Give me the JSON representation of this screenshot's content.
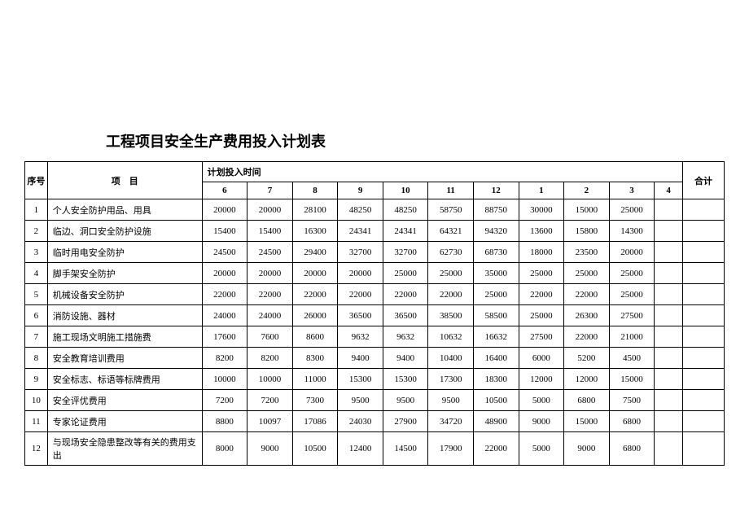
{
  "title": "工程项目安全生产费用投入计划表",
  "headers": {
    "seq": "序号",
    "item": "项　目",
    "period_group": "计划投入时间",
    "total": "合计",
    "months": [
      "6",
      "7",
      "8",
      "9",
      "10",
      "11",
      "12",
      "1",
      "2",
      "3",
      "4"
    ]
  },
  "rows": [
    {
      "seq": "1",
      "item": "个人安全防护用品、用具",
      "vals": [
        "20000",
        "20000",
        "28100",
        "48250",
        "48250",
        "58750",
        "88750",
        "30000",
        "15000",
        "25000",
        ""
      ],
      "total": ""
    },
    {
      "seq": "2",
      "item": "临边、洞口安全防护设施",
      "vals": [
        "15400",
        "15400",
        "16300",
        "24341",
        "24341",
        "64321",
        "94320",
        "13600",
        "15800",
        "14300",
        ""
      ],
      "total": ""
    },
    {
      "seq": "3",
      "item": "临时用电安全防护",
      "vals": [
        "24500",
        "24500",
        "29400",
        "32700",
        "32700",
        "62730",
        "68730",
        "18000",
        "23500",
        "20000",
        ""
      ],
      "total": ""
    },
    {
      "seq": "4",
      "item": "脚手架安全防护",
      "vals": [
        "20000",
        "20000",
        "20000",
        "20000",
        "25000",
        "25000",
        "35000",
        "25000",
        "25000",
        "25000",
        ""
      ],
      "total": ""
    },
    {
      "seq": "5",
      "item": "机械设备安全防护",
      "vals": [
        "22000",
        "22000",
        "22000",
        "22000",
        "22000",
        "22000",
        "25000",
        "22000",
        "22000",
        "25000",
        ""
      ],
      "total": ""
    },
    {
      "seq": "6",
      "item": "消防设施、器材",
      "vals": [
        "24000",
        "24000",
        "26000",
        "36500",
        "36500",
        "38500",
        "58500",
        "25000",
        "26300",
        "27500",
        ""
      ],
      "total": ""
    },
    {
      "seq": "7",
      "item": "施工现场文明施工措施费",
      "vals": [
        "17600",
        "7600",
        "8600",
        "9632",
        "9632",
        "10632",
        "16632",
        "27500",
        "22000",
        "21000",
        ""
      ],
      "total": ""
    },
    {
      "seq": "8",
      "item": "安全教育培训费用",
      "vals": [
        "8200",
        "8200",
        "8300",
        "9400",
        "9400",
        "10400",
        "16400",
        "6000",
        "5200",
        "4500",
        ""
      ],
      "total": ""
    },
    {
      "seq": "9",
      "item": "安全标志、标语等标牌费用",
      "vals": [
        "10000",
        "10000",
        "11000",
        "15300",
        "15300",
        "17300",
        "18300",
        "12000",
        "12000",
        "15000",
        ""
      ],
      "total": ""
    },
    {
      "seq": "10",
      "item": "安全评优费用",
      "vals": [
        "7200",
        "7200",
        "7300",
        "9500",
        "9500",
        "9500",
        "10500",
        "5000",
        "6800",
        "7500",
        ""
      ],
      "total": ""
    },
    {
      "seq": "11",
      "item": "专家论证费用",
      "vals": [
        "8800",
        "10097",
        "17086",
        "24030",
        "27900",
        "34720",
        "48900",
        "9000",
        "15000",
        "6800",
        ""
      ],
      "total": ""
    },
    {
      "seq": "12",
      "item": "与现场安全隐患整改等有关的费用支出",
      "vals": [
        "8000",
        "9000",
        "10500",
        "12400",
        "14500",
        "17900",
        "22000",
        "5000",
        "9000",
        "6800",
        ""
      ],
      "total": ""
    }
  ]
}
